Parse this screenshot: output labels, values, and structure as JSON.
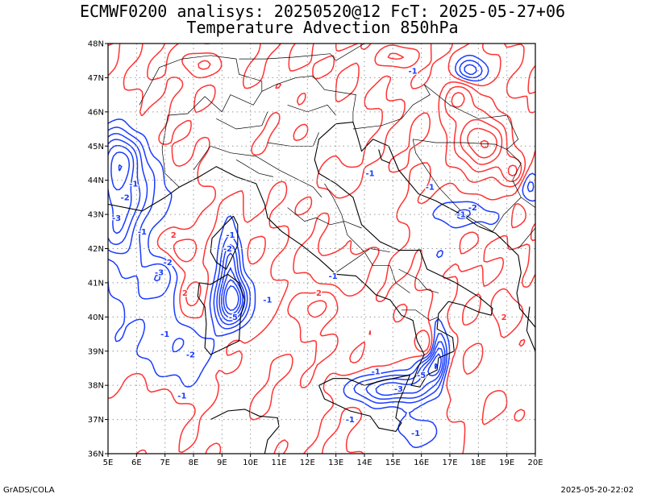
{
  "title": {
    "line1": "ECMWF0200 analisys: 20250520@12 FcT: 2025-05-27+06",
    "line2": "Temperature Advection 850hPa"
  },
  "footer": {
    "left": "GrADS/COLA",
    "right": "2025-05-20-22:02"
  },
  "map": {
    "lat_labels": [
      "48N",
      "47N",
      "46N",
      "45N",
      "44N",
      "43N",
      "42N",
      "41N",
      "40N",
      "39N",
      "38N",
      "37N",
      "36N"
    ],
    "lon_labels": [
      "5E",
      "6E",
      "7E",
      "8E",
      "9E",
      "10E",
      "11E",
      "12E",
      "13E",
      "14E",
      "15E",
      "16E",
      "17E",
      "18E",
      "19E",
      "20E"
    ],
    "lat_range": [
      36,
      48
    ],
    "lon_range": [
      5,
      20
    ],
    "grid": true,
    "colors": {
      "positive": "#ff3333",
      "negative": "#1a3cff",
      "coast": "#000000",
      "grid": "#9a9a9a"
    },
    "contour_labels": [
      {
        "text": "-1",
        "color": "negative",
        "lon": 5.9,
        "lat": 43.9
      },
      {
        "text": "-2",
        "color": "negative",
        "lon": 5.6,
        "lat": 43.5
      },
      {
        "text": "-3",
        "color": "negative",
        "lon": 5.3,
        "lat": 42.9
      },
      {
        "text": "-1",
        "color": "negative",
        "lon": 6.2,
        "lat": 42.5
      },
      {
        "text": "-2",
        "color": "negative",
        "lon": 7.1,
        "lat": 41.6
      },
      {
        "text": "-3",
        "color": "negative",
        "lon": 6.8,
        "lat": 41.3
      },
      {
        "text": "-1",
        "color": "negative",
        "lon": 7.0,
        "lat": 39.5
      },
      {
        "text": "-2",
        "color": "negative",
        "lon": 7.9,
        "lat": 38.9
      },
      {
        "text": "-1",
        "color": "negative",
        "lon": 7.6,
        "lat": 37.7
      },
      {
        "text": "2",
        "color": "positive",
        "lon": 7.3,
        "lat": 42.4
      },
      {
        "text": "2",
        "color": "positive",
        "lon": 7.7,
        "lat": 40.7
      },
      {
        "text": "-2",
        "color": "negative",
        "lon": 9.2,
        "lat": 42.0
      },
      {
        "text": "-1",
        "color": "negative",
        "lon": 9.3,
        "lat": 42.4
      },
      {
        "text": "-5",
        "color": "negative",
        "lon": 9.4,
        "lat": 40.0
      },
      {
        "text": "2",
        "color": "positive",
        "lon": 12.4,
        "lat": 40.7
      },
      {
        "text": "-1",
        "color": "negative",
        "lon": 10.6,
        "lat": 40.5
      },
      {
        "text": "-1",
        "color": "negative",
        "lon": 12.9,
        "lat": 41.2
      },
      {
        "text": "-1",
        "color": "negative",
        "lon": 14.2,
        "lat": 44.2
      },
      {
        "text": "-1",
        "color": "negative",
        "lon": 15.7,
        "lat": 47.2
      },
      {
        "text": "-1",
        "color": "negative",
        "lon": 16.3,
        "lat": 43.8
      },
      {
        "text": "-1",
        "color": "negative",
        "lon": 17.4,
        "lat": 43.0
      },
      {
        "text": "-2",
        "color": "negative",
        "lon": 17.8,
        "lat": 43.2
      },
      {
        "text": "-1",
        "color": "negative",
        "lon": 14.4,
        "lat": 38.4
      },
      {
        "text": "-3",
        "color": "negative",
        "lon": 15.2,
        "lat": 37.9
      },
      {
        "text": "-5",
        "color": "negative",
        "lon": 16.0,
        "lat": 38.3
      },
      {
        "text": "-1",
        "color": "negative",
        "lon": 13.5,
        "lat": 37.0
      },
      {
        "text": "-1",
        "color": "negative",
        "lon": 15.8,
        "lat": 36.6
      },
      {
        "text": "2",
        "color": "positive",
        "lon": 18.9,
        "lat": 40.0
      }
    ]
  }
}
